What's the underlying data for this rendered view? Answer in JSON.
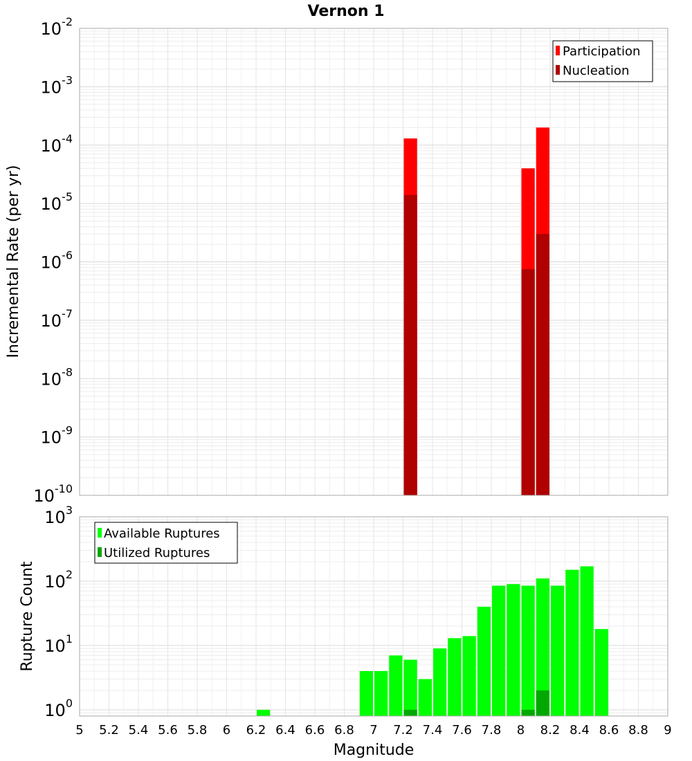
{
  "chart_data": {
    "title": "Vernon 1",
    "xlabel": "Magnitude",
    "xlim": [
      5,
      9
    ],
    "x_ticks": [
      "5",
      "5.2",
      "5.4",
      "5.6",
      "5.8",
      "6",
      "6.2",
      "6.4",
      "6.6",
      "6.8",
      "7",
      "7.2",
      "7.4",
      "7.6",
      "7.8",
      "8",
      "8.2",
      "8.4",
      "8.6",
      "8.8",
      "9"
    ],
    "bin_width": 0.1,
    "top_panel": {
      "type": "bar",
      "ylabel": "Incremental Rate (per yr)",
      "yscale": "log",
      "ylim": [
        1e-10,
        0.01
      ],
      "y_ticks": [
        {
          "value": 1e-10,
          "base": "10",
          "exp": "-10"
        },
        {
          "value": 1e-09,
          "base": "10",
          "exp": "-9"
        },
        {
          "value": 1e-08,
          "base": "10",
          "exp": "-8"
        },
        {
          "value": 1e-07,
          "base": "10",
          "exp": "-7"
        },
        {
          "value": 1e-06,
          "base": "10",
          "exp": "-6"
        },
        {
          "value": 1e-05,
          "base": "10",
          "exp": "-5"
        },
        {
          "value": 0.0001,
          "base": "10",
          "exp": "-4"
        },
        {
          "value": 0.001,
          "base": "10",
          "exp": "-3"
        },
        {
          "value": 0.01,
          "base": "10",
          "exp": "-2"
        }
      ],
      "legend_position": "top-right",
      "series": [
        {
          "name": "Participation",
          "color": "#ff0000",
          "points": [
            {
              "x": 7.25,
              "y": 0.00013
            },
            {
              "x": 8.05,
              "y": 4e-05
            },
            {
              "x": 8.15,
              "y": 0.0002
            }
          ]
        },
        {
          "name": "Nucleation",
          "color": "#b00000",
          "points": [
            {
              "x": 7.25,
              "y": 1.4e-05
            },
            {
              "x": 8.05,
              "y": 7.5e-07
            },
            {
              "x": 8.15,
              "y": 3e-06
            }
          ]
        }
      ]
    },
    "bottom_panel": {
      "type": "bar",
      "ylabel": "Rupture Count",
      "yscale": "log",
      "ylim": [
        0.8,
        1000
      ],
      "y_ticks": [
        {
          "value": 1,
          "base": "10",
          "exp": "0"
        },
        {
          "value": 10,
          "base": "10",
          "exp": "1"
        },
        {
          "value": 100,
          "base": "10",
          "exp": "2"
        },
        {
          "value": 1000,
          "base": "10",
          "exp": "3"
        }
      ],
      "legend_position": "top-left",
      "series": [
        {
          "name": "Available Ruptures",
          "color": "#00ff00",
          "points": [
            {
              "x": 6.25,
              "y": 1
            },
            {
              "x": 6.95,
              "y": 4
            },
            {
              "x": 7.05,
              "y": 4
            },
            {
              "x": 7.15,
              "y": 7
            },
            {
              "x": 7.25,
              "y": 6
            },
            {
              "x": 7.35,
              "y": 3
            },
            {
              "x": 7.45,
              "y": 9
            },
            {
              "x": 7.55,
              "y": 13
            },
            {
              "x": 7.65,
              "y": 14
            },
            {
              "x": 7.75,
              "y": 40
            },
            {
              "x": 7.85,
              "y": 85
            },
            {
              "x": 7.95,
              "y": 90
            },
            {
              "x": 8.05,
              "y": 85
            },
            {
              "x": 8.15,
              "y": 110
            },
            {
              "x": 8.25,
              "y": 85
            },
            {
              "x": 8.35,
              "y": 150
            },
            {
              "x": 8.45,
              "y": 170
            },
            {
              "x": 8.55,
              "y": 18
            }
          ]
        },
        {
          "name": "Utilized Ruptures",
          "color": "#00a800",
          "points": [
            {
              "x": 7.25,
              "y": 1
            },
            {
              "x": 8.05,
              "y": 1
            },
            {
              "x": 8.15,
              "y": 2
            }
          ]
        }
      ]
    }
  }
}
